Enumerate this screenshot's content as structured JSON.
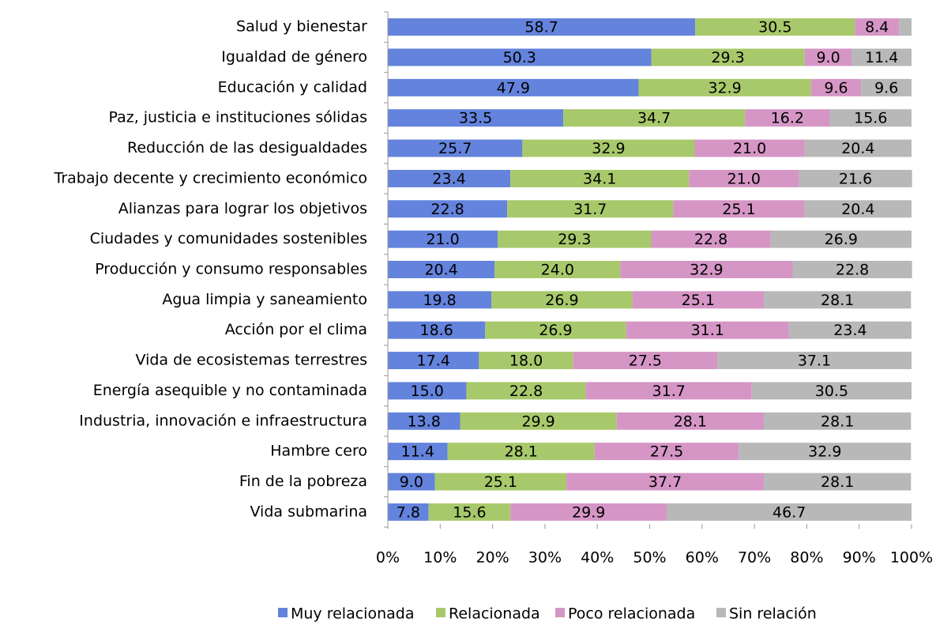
{
  "chart_data": {
    "type": "stacked_bar_horizontal",
    "categories": [
      "Salud y bienestar",
      "Igualdad de género",
      "Educación y calidad",
      "Paz, justicia e instituciones sólidas",
      "Reducción de las desigualdades",
      "Trabajo decente y crecimiento económico",
      "Alianzas para lograr los objetivos",
      "Ciudades y comunidades sostenibles",
      "Producción y consumo responsables",
      "Agua limpia y saneamiento",
      "Acción por el clima",
      "Vida de ecosistemas terrestres",
      "Energía asequible y no contaminada",
      "Industria, innovación e infraestructura",
      "Hambre cero",
      "Fin de la pobreza",
      "Vida submarina"
    ],
    "series": [
      {
        "name": "Muy relacionada",
        "color": "#6383dc",
        "values": [
          58.7,
          50.3,
          47.9,
          33.5,
          25.7,
          23.4,
          22.8,
          21.0,
          20.4,
          19.8,
          18.6,
          17.4,
          15.0,
          13.8,
          11.4,
          9.0,
          7.8
        ],
        "value_labels": [
          "58.7",
          "50.3",
          "47.9",
          "33.5",
          "25.7",
          "23.4",
          "22.8",
          "21.0",
          "20.4",
          "19.8",
          "18.6",
          "17.4",
          "15.0",
          "13.8",
          "11.4",
          "9.0",
          "7.8"
        ]
      },
      {
        "name": "Relacionada",
        "color": "#a8c96b",
        "values": [
          30.5,
          29.3,
          32.9,
          34.7,
          32.9,
          34.1,
          31.7,
          29.3,
          24.0,
          26.9,
          26.9,
          18.0,
          22.8,
          29.9,
          28.1,
          25.1,
          15.6
        ],
        "value_labels": [
          "30.5",
          "29.3",
          "32.9",
          "34.7",
          "32.9",
          "34.1",
          "31.7",
          "29.3",
          "24.0",
          "26.9",
          "26.9",
          "18.0",
          "22.8",
          "29.9",
          "28.1",
          "25.1",
          "15.6"
        ]
      },
      {
        "name": "Poco relacionada",
        "color": "#d596c6",
        "values": [
          8.4,
          9.0,
          9.6,
          16.2,
          21.0,
          21.0,
          25.1,
          22.8,
          32.9,
          25.1,
          31.1,
          27.5,
          31.7,
          28.1,
          27.5,
          37.7,
          29.9
        ],
        "value_labels": [
          "8.4",
          "9.0",
          "9.6",
          "16.2",
          "21.0",
          "21.0",
          "25.1",
          "22.8",
          "32.9",
          "25.1",
          "31.1",
          "27.5",
          "31.7",
          "28.1",
          "27.5",
          "37.7",
          "29.9"
        ]
      },
      {
        "name": "Sin relación",
        "color": "#b8b8b8",
        "values": [
          2.4,
          11.4,
          9.6,
          15.6,
          20.4,
          21.6,
          20.4,
          26.9,
          22.8,
          28.1,
          23.4,
          37.1,
          30.5,
          28.1,
          32.9,
          28.1,
          46.7
        ],
        "value_labels": [
          null,
          "11.4",
          "9.6",
          "15.6",
          "20.4",
          "21.6",
          "20.4",
          "26.9",
          "22.8",
          "28.1",
          "23.4",
          "37.1",
          "30.5",
          "28.1",
          "32.9",
          "28.1",
          "46.7"
        ]
      }
    ],
    "xlim": [
      0,
      100
    ],
    "xticks": [
      {
        "value": 0,
        "label": "0%"
      },
      {
        "value": 10,
        "label": "10%"
      },
      {
        "value": 20,
        "label": "20%"
      },
      {
        "value": 30,
        "label": "30%"
      },
      {
        "value": 40,
        "label": "40%"
      },
      {
        "value": 50,
        "label": "50%"
      },
      {
        "value": 60,
        "label": "60%"
      },
      {
        "value": 70,
        "label": "70%"
      },
      {
        "value": 80,
        "label": "80%"
      },
      {
        "value": 90,
        "label": "90%"
      },
      {
        "value": 100,
        "label": "100%"
      }
    ],
    "legend": "bottom"
  }
}
